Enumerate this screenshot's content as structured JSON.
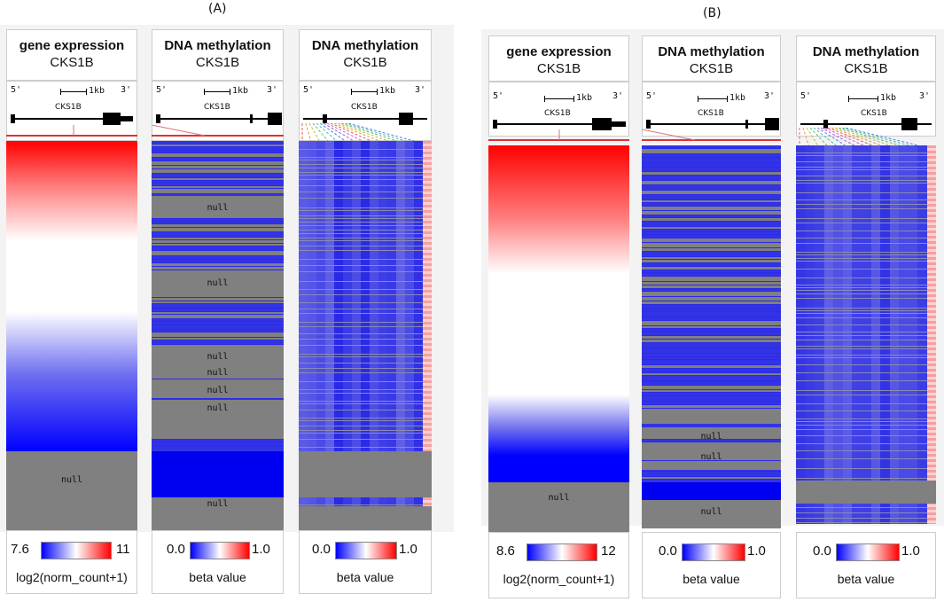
{
  "panel_a": {
    "label": "(A)",
    "columns": [
      {
        "title": "gene expression",
        "gene": "CKS1B",
        "legend": {
          "min": "7.6",
          "max": "11",
          "label": "log2(norm_count+1)"
        },
        "nulls": [
          "null"
        ]
      },
      {
        "title": "DNA methylation",
        "gene": "CKS1B",
        "legend": {
          "min": "0.0",
          "max": "1.0",
          "label": "beta value"
        },
        "nulls": [
          "null",
          "null",
          "null",
          "null",
          "null",
          "null",
          "null"
        ]
      },
      {
        "title": "DNA methylation",
        "gene": "CKS1B",
        "legend": {
          "min": "0.0",
          "max": "1.0",
          "label": "beta value"
        },
        "nulls": []
      }
    ]
  },
  "panel_b": {
    "label": "(B)",
    "columns": [
      {
        "title": "gene expression",
        "gene": "CKS1B",
        "legend": {
          "min": "8.6",
          "max": "12",
          "label": "log2(norm_count+1)"
        },
        "nulls": [
          "null"
        ]
      },
      {
        "title": "DNA methylation",
        "gene": "CKS1B",
        "legend": {
          "min": "0.0",
          "max": "1.0",
          "label": "beta value"
        },
        "nulls": [
          "null",
          "null",
          "null"
        ]
      },
      {
        "title": "DNA methylation",
        "gene": "CKS1B",
        "legend": {
          "min": "0.0",
          "max": "1.0",
          "label": "beta value"
        },
        "nulls": []
      }
    ]
  },
  "track": {
    "five_prime": "5'",
    "three_prime": "3'",
    "scale_label": "1kb",
    "gene_label": "CKS1B"
  },
  "colors": {
    "high": "#ff0000",
    "low": "#0000ff",
    "mid": "#ffffff",
    "null": "#808080"
  }
}
